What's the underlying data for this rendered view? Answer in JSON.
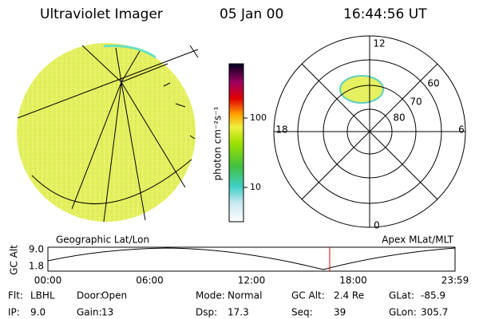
{
  "header": {
    "instrument": "Ultraviolet Imager",
    "date": "05 Jan 00",
    "time": "16:44:56 UT"
  },
  "colorbar": {
    "unit": "photon cm⁻²s⁻¹",
    "labels": [
      "100",
      "10"
    ]
  },
  "polar": {
    "mlt_labels": [
      "12",
      "18",
      "6",
      "0"
    ],
    "mlat_labels": [
      "60",
      "70",
      "80"
    ]
  },
  "timeline": {
    "axis_label": "GC Alt",
    "y_labels": [
      "9.0",
      "1.8"
    ],
    "left_title": "Geographic Lat/Lon",
    "right_title": "Apex MLat/MLT",
    "time_labels": [
      "00:00",
      "06:00",
      "12:00",
      "18:00",
      "23:59"
    ]
  },
  "info": [
    [
      [
        "Flt:",
        "LBHL"
      ],
      [
        "Door:",
        "Open"
      ],
      [
        "Mode:",
        "Normal"
      ],
      [
        "GC Alt:",
        "2.4 Re"
      ],
      [
        "GLat:",
        "-85.9"
      ]
    ],
    [
      [
        "IP:",
        "9.0"
      ],
      [
        "Gain:",
        "13"
      ],
      [
        "Dsp:",
        "17.3"
      ],
      [
        "Seq:",
        "39"
      ],
      [
        "GLon:",
        "305.7"
      ]
    ]
  ]
}
